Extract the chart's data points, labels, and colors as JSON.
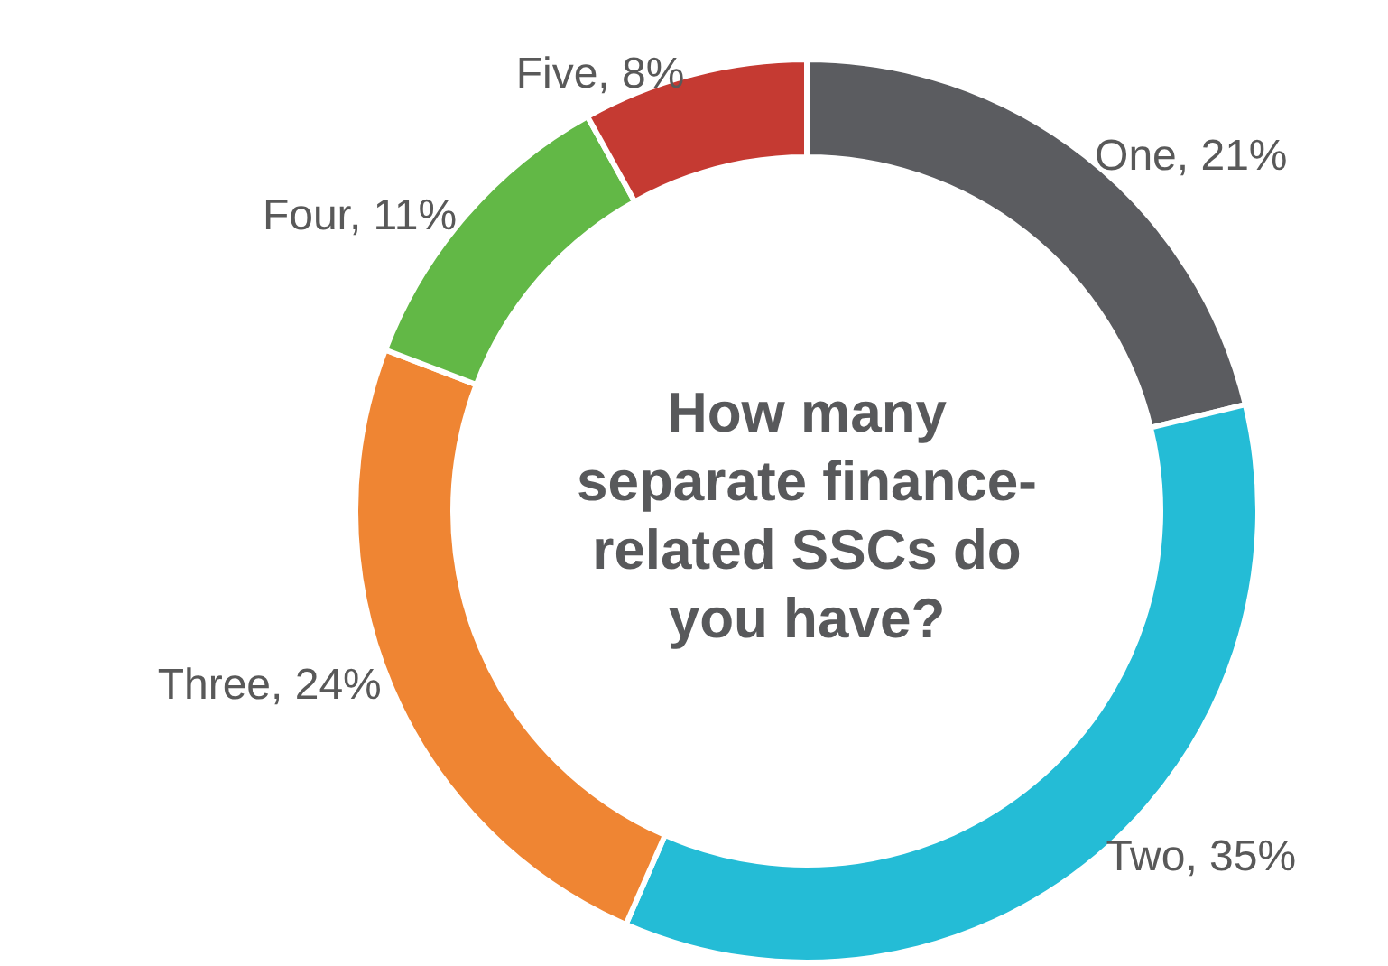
{
  "chart_data": {
    "type": "donut",
    "title": "How many separate finance-related SSCs do you have?",
    "categories": [
      "One",
      "Two",
      "Three",
      "Four",
      "Five"
    ],
    "values": [
      21,
      35,
      24,
      11,
      8
    ],
    "value_labels": [
      "21%",
      "35%",
      "24%",
      "11%",
      "8%"
    ],
    "colors": [
      "#5b5c60",
      "#24bcd6",
      "#ef8533",
      "#62b846",
      "#c53a32"
    ],
    "legend": false
  }
}
